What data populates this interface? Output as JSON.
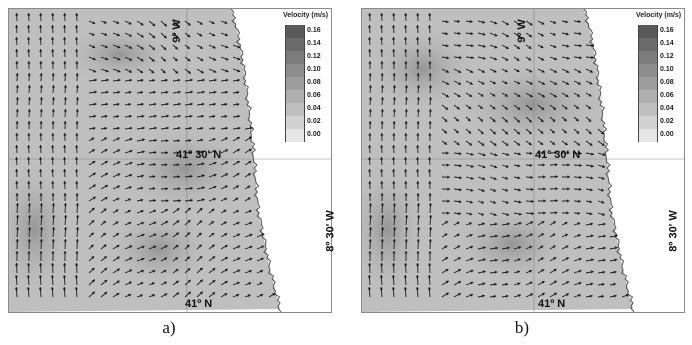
{
  "figure": {
    "panels": [
      {
        "id": "a",
        "caption": "a)",
        "labels": {
          "longitude_top": "9º W",
          "latitude_mid": "41º 30' N",
          "latitude_bottom": "41º N"
        }
      },
      {
        "id": "b",
        "caption": "b)",
        "labels": {
          "longitude_top": "9º W",
          "latitude_mid": "41º 30' N",
          "latitude_bottom": "41º N",
          "longitude_right": "8º 30' W"
        }
      }
    ],
    "right_label_a": "8º 30' W",
    "legend": {
      "title": "Velocity (m/s)",
      "levels": [
        "0.16",
        "0.14",
        "0.12",
        "0.10",
        "0.08",
        "0.06",
        "0.04",
        "0.02",
        "0.00"
      ],
      "colors": [
        "#5a5a5a",
        "#6b6b6b",
        "#7c7c7c",
        "#8d8d8d",
        "#9e9e9e",
        "#afafaf",
        "#c0c0c0",
        "#d2d2d2",
        "#e6e6e6"
      ]
    },
    "colors": {
      "ocean": "#bfbfbf",
      "land": "#ffffff",
      "coast": "#555555",
      "arrow": "#1a1a1a",
      "grid": "#888888"
    }
  }
}
